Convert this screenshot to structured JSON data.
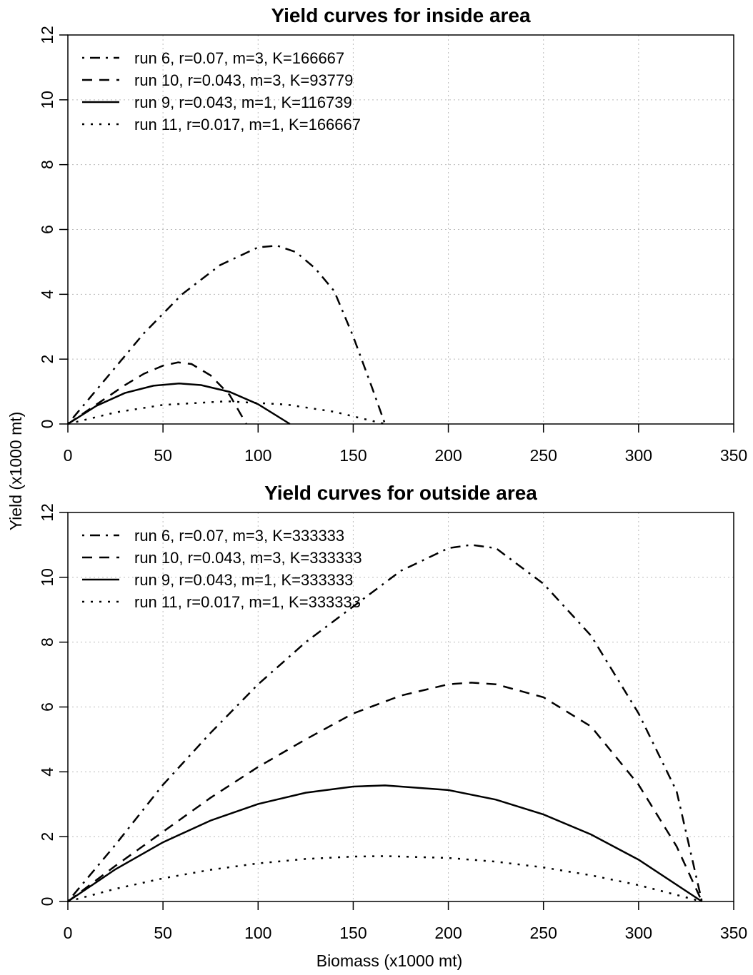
{
  "chart_data": [
    {
      "type": "line",
      "title": "Yield curves for inside area",
      "ylabel": "Yield (x1000 mt)",
      "xlim": [
        0,
        350
      ],
      "ylim": [
        0,
        12
      ],
      "xticks": [
        0,
        50,
        100,
        150,
        200,
        250,
        300,
        350
      ],
      "yticks": [
        0,
        2,
        4,
        6,
        8,
        10,
        12
      ],
      "grid": true,
      "legend": "top-left",
      "series": [
        {
          "name": "run 6, r=0.07, m=3, K=166667",
          "color": "#000000",
          "line_style": "dotdash",
          "x": [
            0,
            20,
            40,
            60,
            80,
            100,
            110,
            120,
            130,
            140,
            150,
            160,
            166.7
          ],
          "values": [
            0,
            1.4,
            2.8,
            4.0,
            4.9,
            5.45,
            5.5,
            5.3,
            4.8,
            4.1,
            2.7,
            1.1,
            0
          ]
        },
        {
          "name": "run 10, r=0.043, m=3, K=93779",
          "color": "#000000",
          "line_style": "dashed",
          "x": [
            0,
            10,
            20,
            30,
            40,
            50,
            58,
            65,
            75,
            85,
            93.8
          ],
          "values": [
            0,
            0.4,
            0.8,
            1.2,
            1.55,
            1.8,
            1.9,
            1.85,
            1.5,
            0.9,
            0
          ]
        },
        {
          "name": "run 9, r=0.043, m=1, K=116739",
          "color": "#000000",
          "line_style": "solid",
          "x": [
            0,
            15,
            30,
            45,
            58.4,
            70,
            85,
            100,
            116.7
          ],
          "values": [
            0,
            0.56,
            0.955,
            1.18,
            1.25,
            1.2,
            0.99,
            0.61,
            0
          ]
        },
        {
          "name": "run 11, r=0.017, m=1, K=166667",
          "color": "#000000",
          "line_style": "dotted",
          "x": [
            0,
            25,
            50,
            83.3,
            115,
            140,
            166.7
          ],
          "values": [
            0,
            0.357,
            0.588,
            0.7,
            0.599,
            0.376,
            0
          ]
        }
      ]
    },
    {
      "type": "line",
      "title": "Yield curves for outside area",
      "xlabel": "Biomass (x1000 mt)",
      "xlim": [
        0,
        350
      ],
      "ylim": [
        0,
        12
      ],
      "xticks": [
        0,
        50,
        100,
        150,
        200,
        250,
        300,
        350
      ],
      "yticks": [
        0,
        2,
        4,
        6,
        8,
        10,
        12
      ],
      "grid": true,
      "legend": "top-left",
      "series": [
        {
          "name": "run 6, r=0.07, m=3, K=333333",
          "color": "#000000",
          "line_style": "dotdash",
          "x": [
            0,
            25,
            50,
            75,
            100,
            125,
            150,
            175,
            200,
            212,
            225,
            250,
            275,
            300,
            320,
            333.3
          ],
          "values": [
            0,
            1.75,
            3.6,
            5.2,
            6.7,
            8.0,
            9.1,
            10.2,
            10.9,
            11.0,
            10.9,
            9.8,
            8.2,
            5.8,
            3.4,
            0
          ]
        },
        {
          "name": "run 10, r=0.043, m=3, K=333333",
          "color": "#000000",
          "line_style": "dashed",
          "x": [
            0,
            25,
            50,
            75,
            100,
            125,
            150,
            175,
            200,
            212,
            225,
            250,
            275,
            300,
            320,
            333.3
          ],
          "values": [
            0,
            1.1,
            2.15,
            3.2,
            4.15,
            5.0,
            5.8,
            6.35,
            6.7,
            6.75,
            6.7,
            6.3,
            5.4,
            3.6,
            1.7,
            0
          ]
        },
        {
          "name": "run 9, r=0.043, m=1, K=333333",
          "color": "#000000",
          "line_style": "solid",
          "x": [
            0,
            25,
            50,
            75,
            100,
            125,
            150,
            166.7,
            200,
            225,
            250,
            275,
            300,
            333.3
          ],
          "values": [
            0,
            0.993,
            1.826,
            2.497,
            3.007,
            3.356,
            3.544,
            3.58,
            3.437,
            3.142,
            2.685,
            2.067,
            1.289,
            0
          ]
        },
        {
          "name": "run 11, r=0.017, m=1, K=333333",
          "color": "#000000",
          "line_style": "dotted",
          "x": [
            0,
            25,
            50,
            75,
            100,
            125,
            150,
            166.7,
            200,
            225,
            250,
            275,
            300,
            333.3
          ],
          "values": [
            0,
            0.389,
            0.714,
            0.977,
            1.176,
            1.313,
            1.386,
            1.4,
            1.344,
            1.228,
            1.05,
            0.809,
            0.504,
            0
          ]
        }
      ]
    }
  ]
}
